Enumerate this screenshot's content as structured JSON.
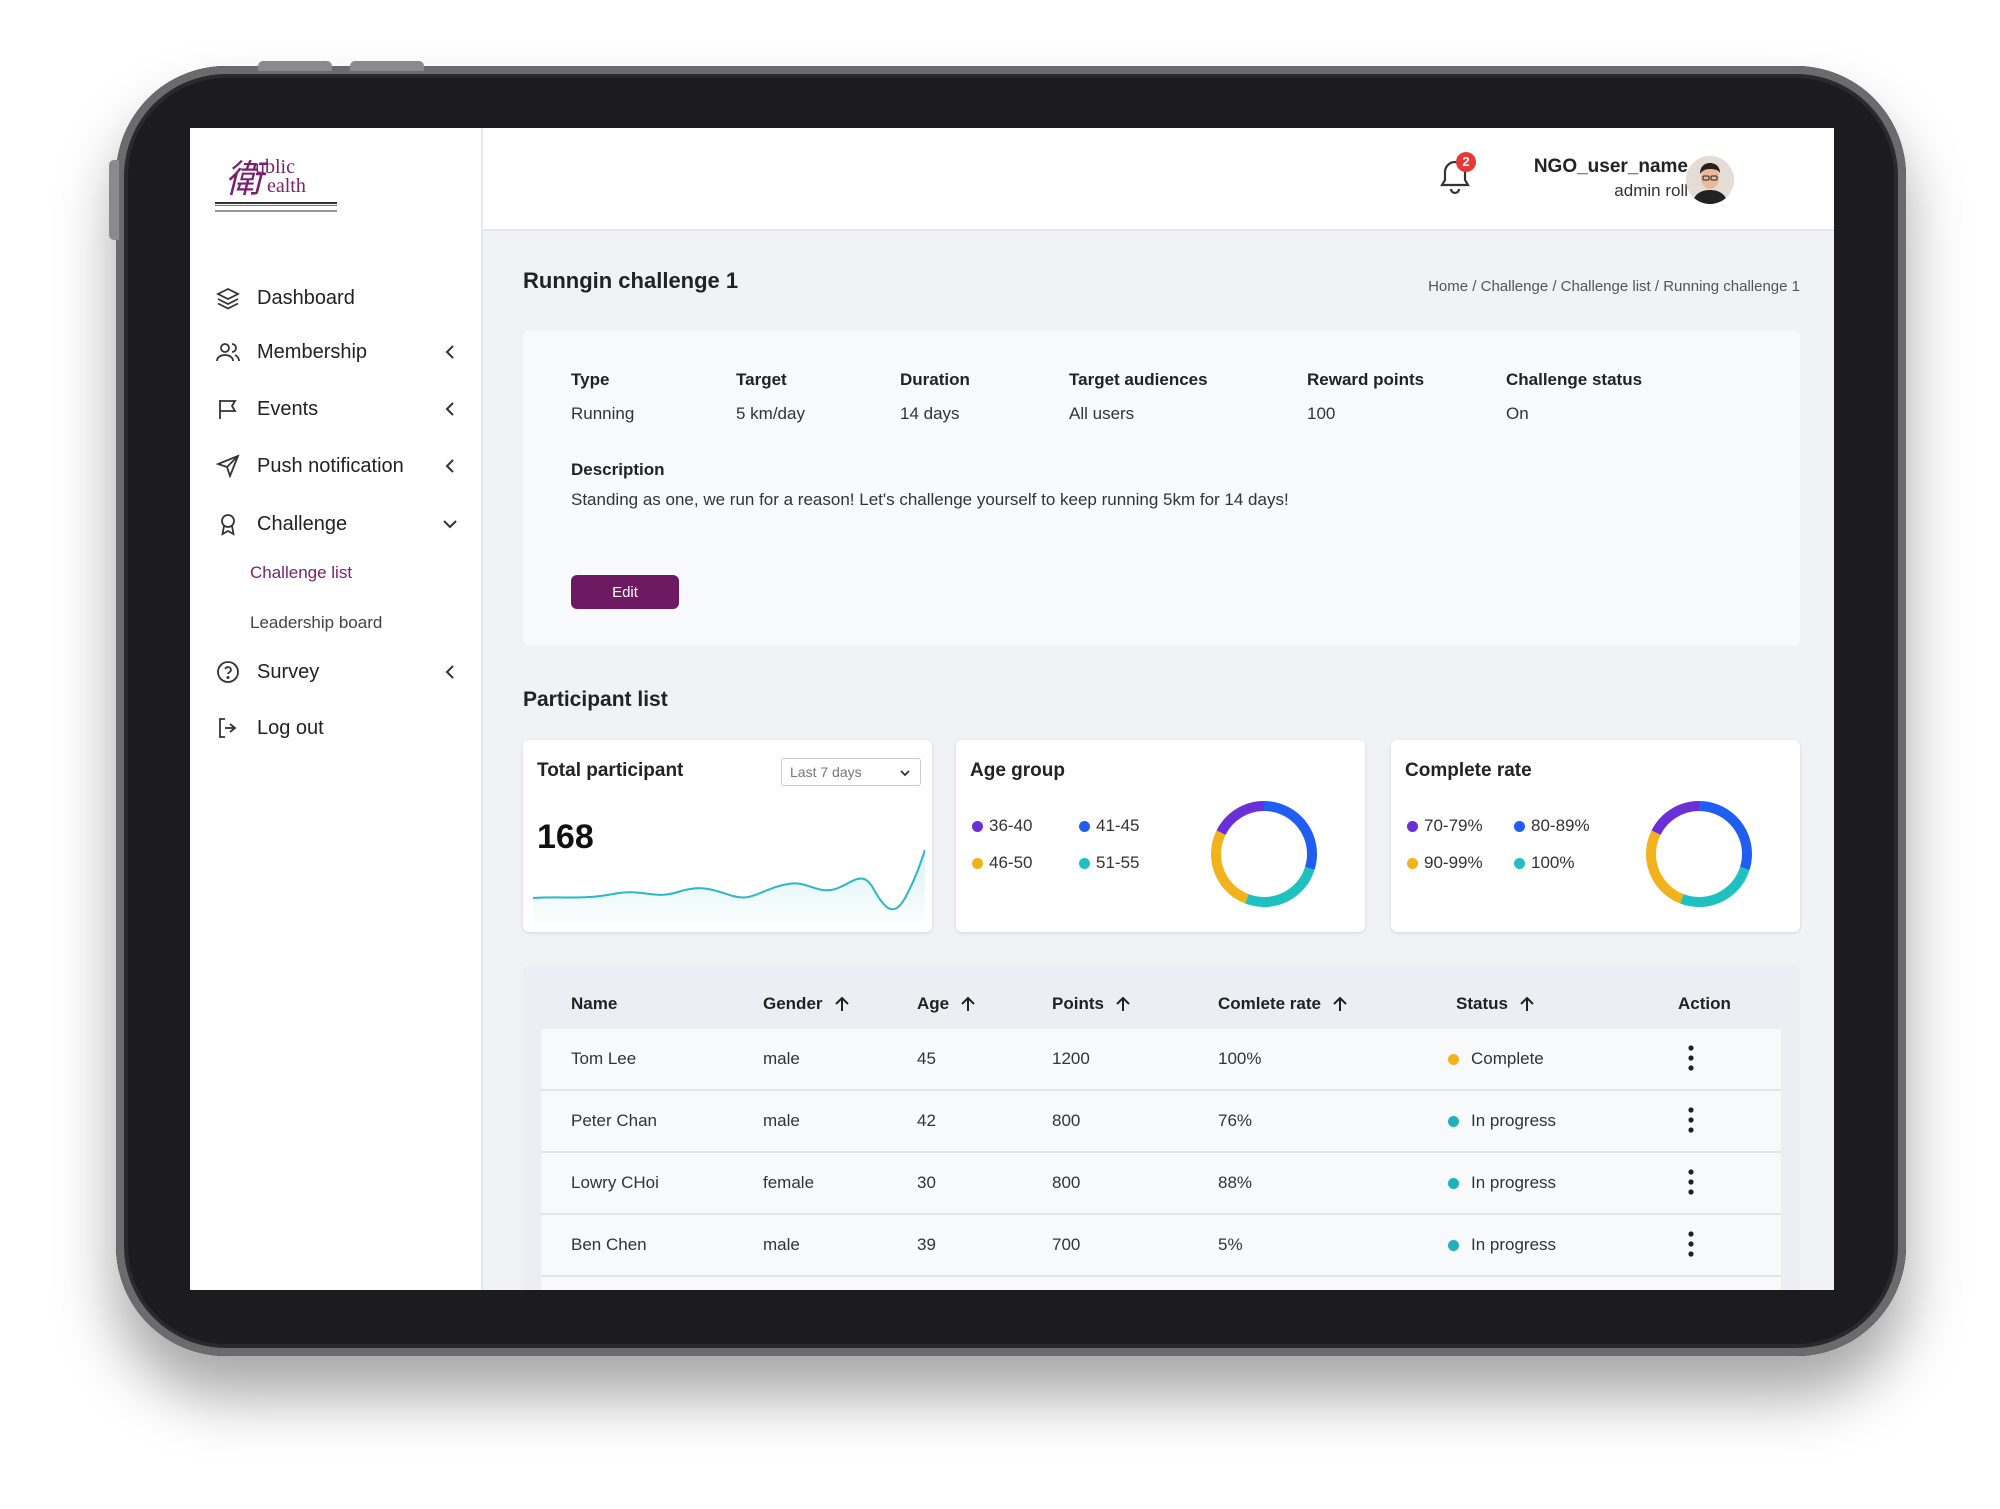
{
  "logo": {
    "char": "衛",
    "word1": "ublic",
    "word2": "ealth"
  },
  "sidebar": {
    "items": [
      {
        "label": "Dashboard",
        "icon": "layers-icon"
      },
      {
        "label": "Membership",
        "icon": "users-icon"
      },
      {
        "label": "Events",
        "icon": "flag-icon"
      },
      {
        "label": "Push notification",
        "icon": "send-icon"
      },
      {
        "label": "Challenge",
        "icon": "award-icon"
      },
      {
        "label": "Survey",
        "icon": "help-circle-icon"
      },
      {
        "label": "Log out",
        "icon": "log-out-icon"
      }
    ],
    "sub_items": [
      {
        "label": "Challenge list",
        "active": true
      },
      {
        "label": "Leadership board",
        "active": false
      }
    ],
    "accent_color": "#7a1f6e"
  },
  "header": {
    "notification_count": "2",
    "user_name": "NGO_user_name",
    "user_role": "admin roll"
  },
  "page": {
    "title": "Runngin challenge 1",
    "breadcrumb": "Home / Challenge / Challenge list / Running challenge 1"
  },
  "challenge": {
    "fields": [
      {
        "key": "Type",
        "value": "Running"
      },
      {
        "key": "Target",
        "value": "5 km/day"
      },
      {
        "key": "Duration",
        "value": "14 days"
      },
      {
        "key": "Target audiences",
        "value": "All users"
      },
      {
        "key": "Reward points",
        "value": "100"
      },
      {
        "key": "Challenge status",
        "value": "On"
      }
    ],
    "description_label": "Description",
    "description": "Standing as one, we run for a reason! Let's challenge yourself to keep running 5km for 14 days!",
    "edit_label": "Edit",
    "edit_color": "#6e1a63"
  },
  "participants": {
    "section_title": "Participant list",
    "total": {
      "title": "Total participant",
      "period": "Last 7 days",
      "value": "168"
    },
    "age_group": {
      "title": "Age group",
      "legend": [
        {
          "label": "36-40",
          "color": "#6a2fd6"
        },
        {
          "label": "41-45",
          "color": "#1f5ef0"
        },
        {
          "label": "46-50",
          "color": "#f2b21b"
        },
        {
          "label": "51-55",
          "color": "#1ec0c0"
        }
      ]
    },
    "complete_rate": {
      "title": "Complete rate",
      "legend": [
        {
          "label": "70-79%",
          "color": "#6a2fd6"
        },
        {
          "label": "80-89%",
          "color": "#1f5ef0"
        },
        {
          "label": "90-99%",
          "color": "#f2b21b"
        },
        {
          "label": "100%",
          "color": "#1ec0c0"
        }
      ]
    }
  },
  "table": {
    "headers": [
      "Name",
      "Gender",
      "Age",
      "Points",
      "Comlete rate",
      "Status",
      "Action"
    ],
    "rows": [
      {
        "name": "Tom Lee",
        "gender": "male",
        "age": "45",
        "points": "1200",
        "rate": "100%",
        "status": "Complete",
        "status_color": "#f2b21b"
      },
      {
        "name": "Peter Chan",
        "gender": "male",
        "age": "42",
        "points": "800",
        "rate": "76%",
        "status": "In progress",
        "status_color": "#1fb1c0"
      },
      {
        "name": "Lowry CHoi",
        "gender": "female",
        "age": "30",
        "points": "800",
        "rate": "88%",
        "status": "In progress",
        "status_color": "#1fb1c0"
      },
      {
        "name": "Ben Chen",
        "gender": "male",
        "age": "39",
        "points": "700",
        "rate": "5%",
        "status": "In progress",
        "status_color": "#1fb1c0"
      }
    ]
  }
}
